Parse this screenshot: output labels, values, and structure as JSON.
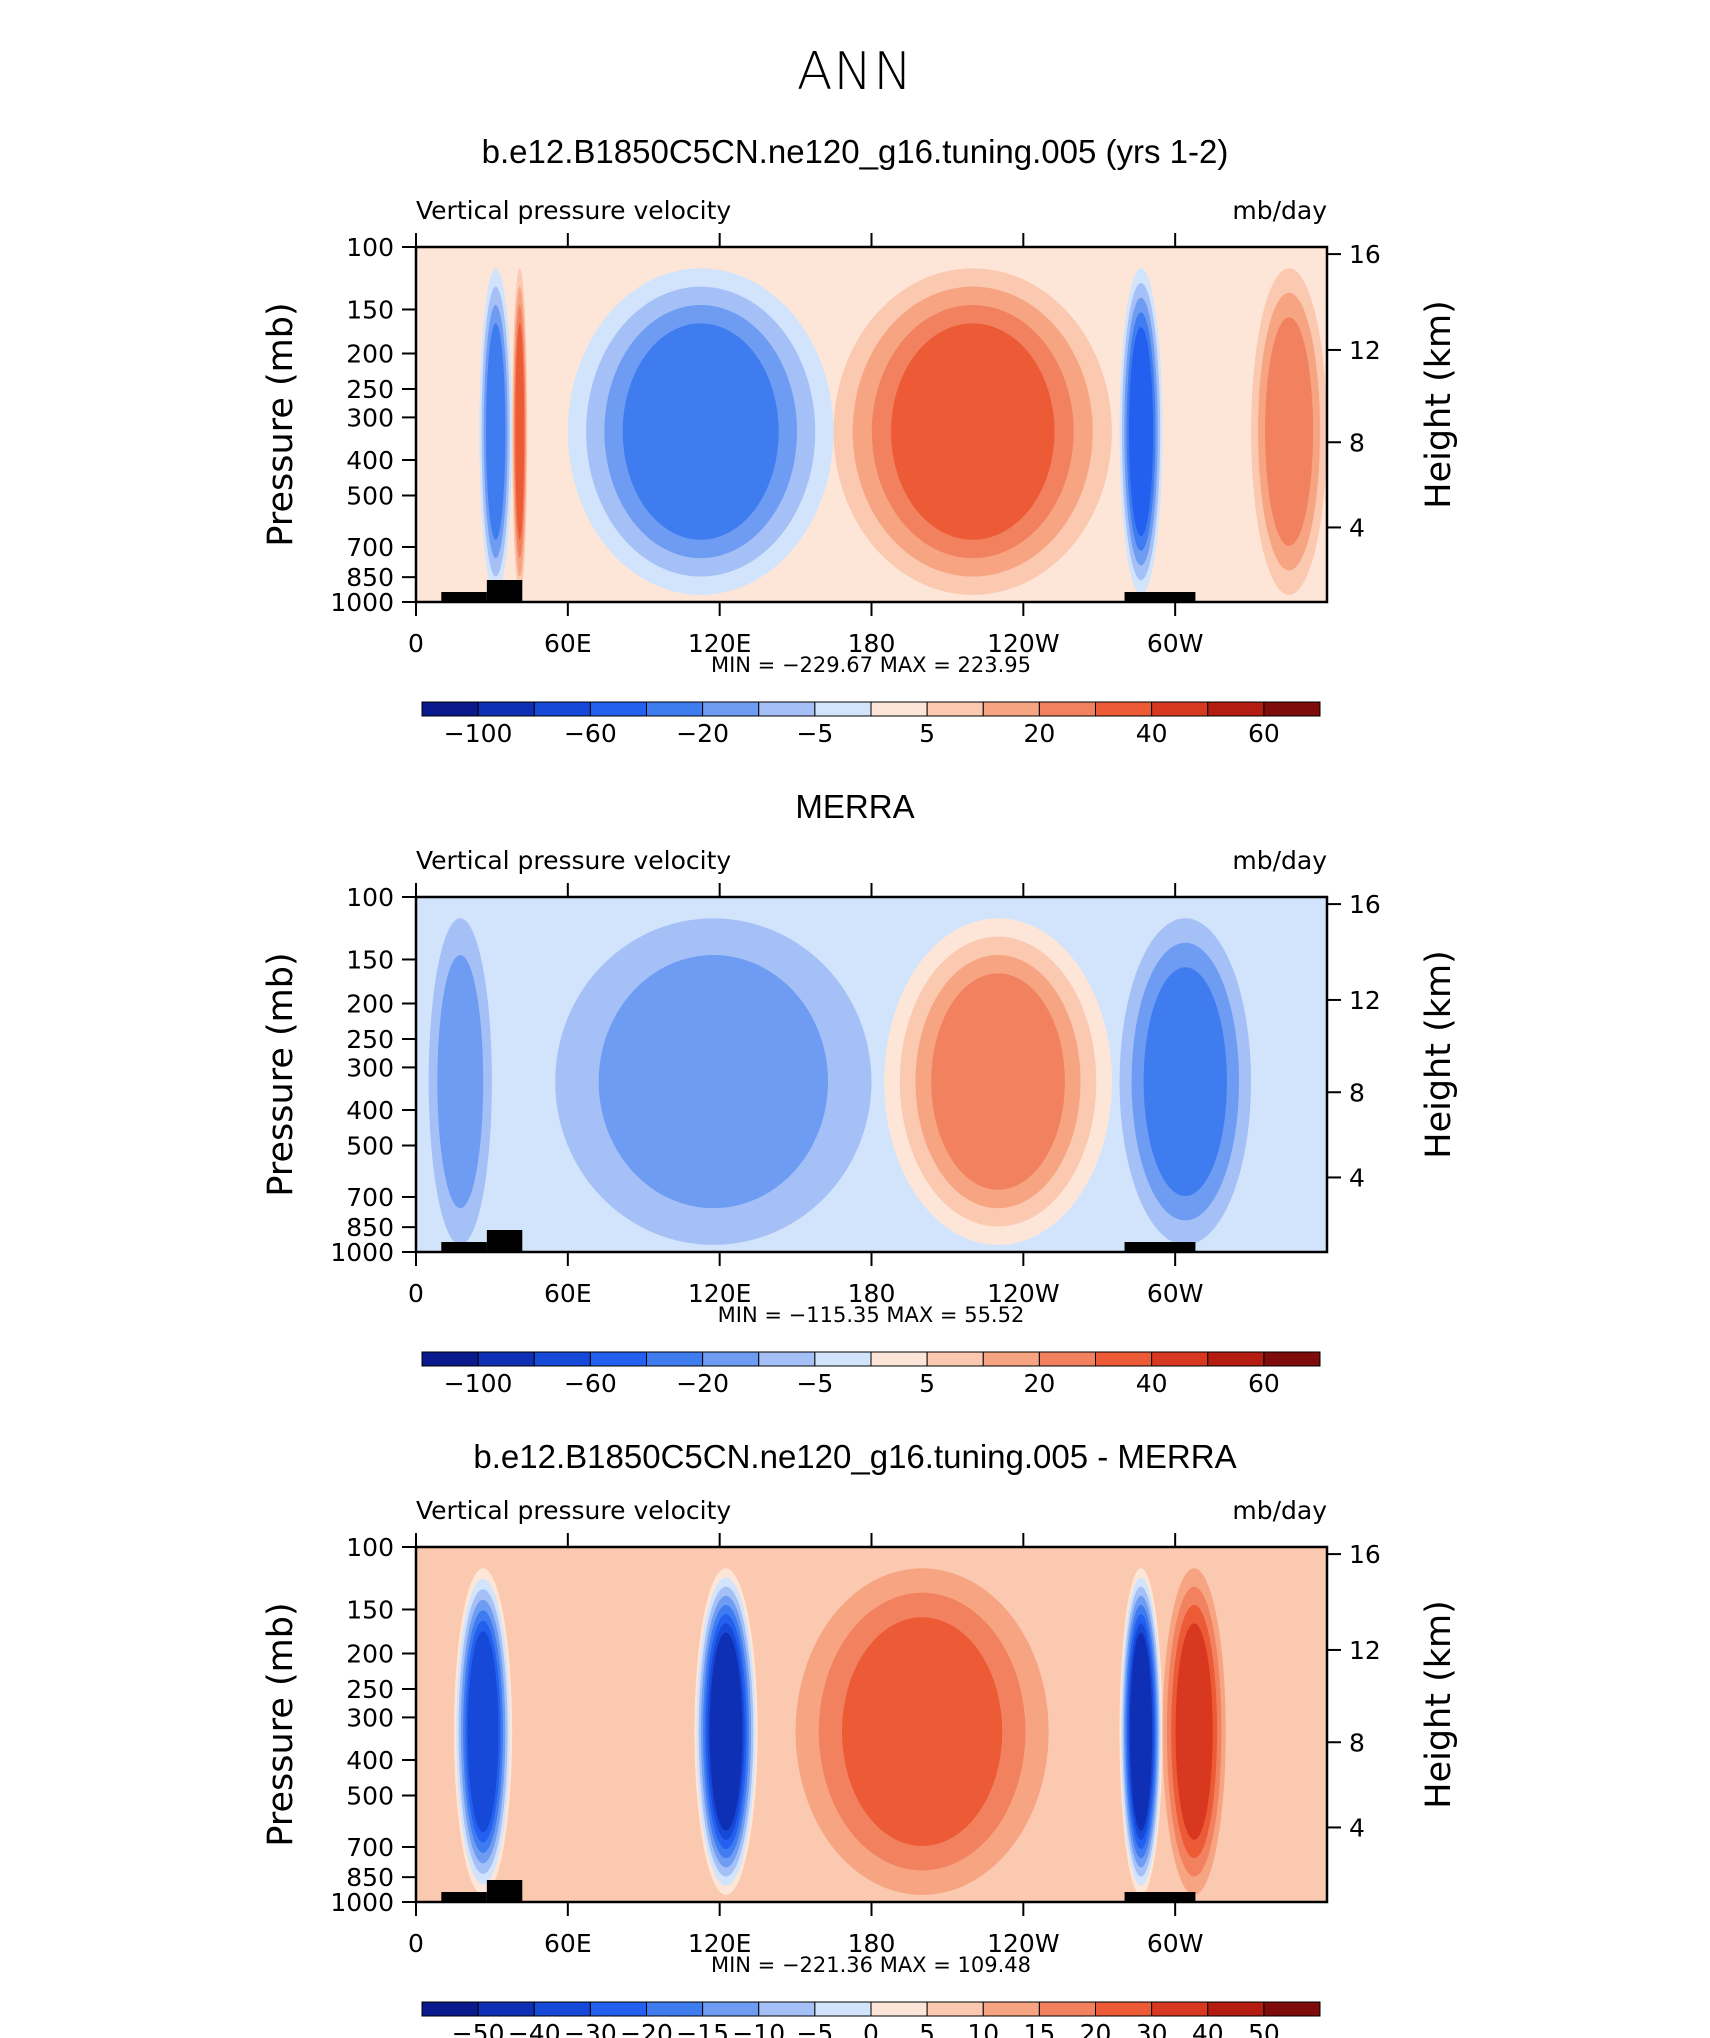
{
  "page": {
    "title": "ANN"
  },
  "scale": {
    "colors": [
      "#0a1a8c",
      "#0f2fb5",
      "#1749d9",
      "#2360ef",
      "#3f7cf0",
      "#6e9cf3",
      "#a4c0f6",
      "#d2e4fb",
      "#fde6d8",
      "#fbc8b0",
      "#f7a482",
      "#f2825f",
      "#ec5a36",
      "#d8381f",
      "#b41c12",
      "#7e0c0a"
    ]
  },
  "chart_data": [
    {
      "type": "heatmap",
      "title": "b.e12.B1850C5CN.ne120_g16.tuning.005 (yrs 1-2)",
      "left_label": "Vertical pressure velocity",
      "right_label": "mb/day",
      "ylabel": "Pressure (mb)",
      "y2label": "Height (km)",
      "yticks": [
        "100",
        "150",
        "200",
        "250",
        "300",
        "400",
        "500",
        "700",
        "850",
        "1000"
      ],
      "y2ticks": [
        "16",
        "12",
        "8",
        "4"
      ],
      "xticks": [
        "0",
        "60E",
        "120E",
        "180",
        "120W",
        "60W"
      ],
      "stats": "MIN = −229.67   MAX = 223.95",
      "colorbar_labels": [
        "−100",
        "−60",
        "−20",
        "−5",
        "5",
        "20",
        "40",
        "60"
      ],
      "min": -229.67,
      "max": 223.95,
      "features": [
        {
          "name": "africa-conv",
          "lon": [
            25,
            38
          ],
          "level": 4
        },
        {
          "name": "africa-cold",
          "lon": [
            38,
            44
          ],
          "level": 12
        },
        {
          "name": "w-pacific-conv",
          "lon": [
            60,
            165
          ],
          "level": 4
        },
        {
          "name": "e-pacific-sub",
          "lon": [
            165,
            275
          ],
          "level": 12
        },
        {
          "name": "s-america-conv",
          "lon": [
            278,
            295
          ],
          "level": 3
        },
        {
          "name": "atlantic-sub",
          "lon": [
            330,
            360
          ],
          "level": 11
        }
      ]
    },
    {
      "type": "heatmap",
      "title": "MERRA",
      "left_label": "Vertical pressure velocity",
      "right_label": "mb/day",
      "ylabel": "Pressure (mb)",
      "y2label": "Height (km)",
      "yticks": [
        "100",
        "150",
        "200",
        "250",
        "300",
        "400",
        "500",
        "700",
        "850",
        "1000"
      ],
      "y2ticks": [
        "16",
        "12",
        "8",
        "4"
      ],
      "xticks": [
        "0",
        "60E",
        "120E",
        "180",
        "120W",
        "60W"
      ],
      "stats": "MIN = −115.35   MAX =   55.52",
      "colorbar_labels": [
        "−100",
        "−60",
        "−20",
        "−5",
        "5",
        "20",
        "40",
        "60"
      ],
      "min": -115.35,
      "max": 55.52,
      "features": [
        {
          "name": "africa-conv",
          "lon": [
            5,
            30
          ],
          "level": 5
        },
        {
          "name": "w-pacific-conv",
          "lon": [
            55,
            180
          ],
          "level": 5
        },
        {
          "name": "e-pacific-sub",
          "lon": [
            185,
            275
          ],
          "level": 11
        },
        {
          "name": "s-america-conv",
          "lon": [
            278,
            330
          ],
          "level": 4
        }
      ]
    },
    {
      "type": "heatmap",
      "title": "b.e12.B1850C5CN.ne120_g16.tuning.005 - MERRA",
      "left_label": "Vertical pressure velocity",
      "right_label": "mb/day",
      "ylabel": "Pressure (mb)",
      "y2label": "Height (km)",
      "yticks": [
        "100",
        "150",
        "200",
        "250",
        "300",
        "400",
        "500",
        "700",
        "850",
        "1000"
      ],
      "y2ticks": [
        "16",
        "12",
        "8",
        "4"
      ],
      "xticks": [
        "0",
        "60E",
        "120E",
        "180",
        "120W",
        "60W"
      ],
      "stats": "MIN = −221.36   MAX = 109.48",
      "colorbar_labels": [
        "−50",
        "−40",
        "−30",
        "−20",
        "−15",
        "−10",
        "−5",
        "0",
        "5",
        "10",
        "15",
        "20",
        "30",
        "40",
        "50"
      ],
      "min": -221.36,
      "max": 109.48,
      "features": [
        {
          "name": "africa-diff",
          "lon": [
            15,
            38
          ],
          "level": 2
        },
        {
          "name": "w-pacific-diff",
          "lon": [
            110,
            135
          ],
          "level": 1
        },
        {
          "name": "e-pacific-diff",
          "lon": [
            150,
            250
          ],
          "level": 12
        },
        {
          "name": "s-america-diff",
          "lon": [
            278,
            295
          ],
          "level": 1
        },
        {
          "name": "s-america-pos",
          "lon": [
            295,
            320
          ],
          "level": 13
        }
      ]
    }
  ]
}
